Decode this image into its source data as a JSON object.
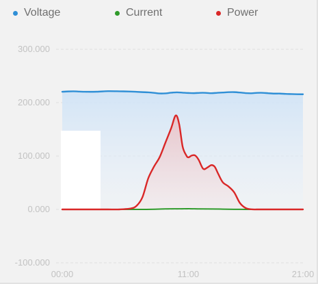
{
  "chart_data": {
    "type": "line",
    "x_unit": "hours",
    "x_range": [
      0,
      21
    ],
    "ylim": [
      -100000,
      300000
    ],
    "y_ticks": [
      300000,
      200000,
      100000,
      0,
      -100000
    ],
    "y_tick_labels": [
      "300.000",
      "200.000",
      "100.000",
      "0.000",
      "-100.000"
    ],
    "x_ticks": [
      0,
      11,
      21
    ],
    "x_tick_labels": [
      "00:00",
      "11:00",
      "21:00"
    ],
    "grid": true,
    "legend_position": "top-left",
    "series": [
      {
        "name": "Voltage",
        "color": "#2f8fd6",
        "x": [
          0,
          0.5,
          1,
          1.5,
          2,
          3,
          4,
          5,
          6,
          6.5,
          7,
          7.5,
          8,
          8.5,
          9,
          9.5,
          10,
          10.5,
          11,
          11.5,
          12,
          12.5,
          13,
          13.5,
          14,
          14.5,
          15,
          15.5,
          16,
          16.5,
          17,
          17.5,
          18,
          18.5,
          19,
          19.5,
          20,
          20.5,
          21
        ],
        "y": [
          220400,
          221000,
          221200,
          220800,
          220400,
          220500,
          221500,
          221300,
          220800,
          220300,
          219700,
          219300,
          218400,
          217200,
          217400,
          218600,
          219300,
          218700,
          218100,
          217800,
          218400,
          218400,
          217700,
          218400,
          219000,
          219600,
          219700,
          219000,
          217900,
          217600,
          218300,
          218400,
          217600,
          217000,
          217000,
          216400,
          216100,
          215800,
          215700
        ]
      },
      {
        "name": "Current",
        "color": "#2f9a2a",
        "x": [
          0,
          3,
          5,
          7,
          9,
          10,
          11,
          12,
          13,
          14,
          15,
          16,
          17,
          18,
          19,
          20,
          21
        ],
        "y": [
          0,
          0,
          0,
          0,
          900,
          1100,
          1300,
          1000,
          800,
          500,
          200,
          0,
          0,
          0,
          0,
          0,
          0
        ]
      },
      {
        "name": "Power",
        "color": "#d92727",
        "x": [
          0,
          1,
          2,
          3,
          4,
          5,
          6,
          6.5,
          7,
          7.5,
          8,
          8.5,
          9,
          9.5,
          9.9,
          10.2,
          10.5,
          10.8,
          11,
          11.3,
          11.6,
          11.9,
          12.3,
          12.7,
          13,
          13.3,
          13.6,
          14,
          14.5,
          15,
          15.5,
          16,
          16.5,
          17,
          17.5,
          18,
          19,
          20,
          21
        ],
        "y": [
          0,
          0,
          0,
          0,
          0,
          0,
          1800,
          7000,
          23000,
          58000,
          80000,
          98000,
          125000,
          152000,
          176000,
          160000,
          118000,
          102000,
          97500,
          101000,
          101000,
          93000,
          76000,
          79000,
          83000,
          80000,
          67000,
          51000,
          43000,
          32000,
          12000,
          2600,
          200,
          0,
          0,
          0,
          0,
          0,
          0
        ]
      }
    ]
  }
}
